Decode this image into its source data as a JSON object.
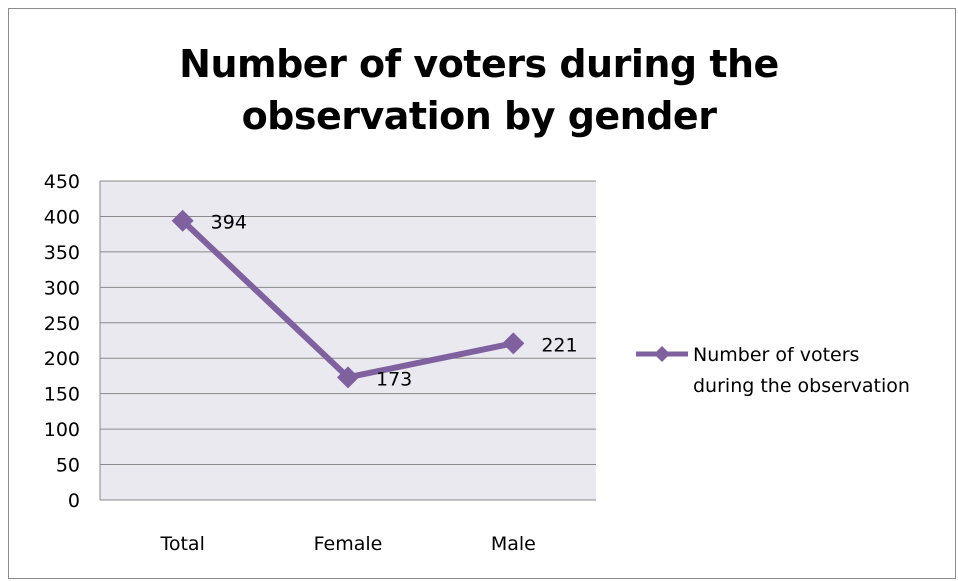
{
  "chart_data": {
    "type": "line",
    "title": "Number of voters during the observation by gender",
    "title_lines": [
      "Number of voters during the",
      "observation by gender"
    ],
    "categories": [
      "Total",
      "Female",
      "Male"
    ],
    "series": [
      {
        "name": "Number of voters during the observation",
        "name_lines": [
          "Number of voters",
          "during the observation"
        ],
        "values": [
          394,
          173,
          221
        ],
        "color": "#7f619f",
        "marker": "diamond"
      }
    ],
    "data_labels": [
      "394",
      "173",
      "221"
    ],
    "ylim": [
      0,
      450
    ],
    "y_ticks": [
      0,
      50,
      100,
      150,
      200,
      250,
      300,
      350,
      400,
      450
    ],
    "y_tick_labels": [
      "0",
      "50",
      "100",
      "150",
      "200",
      "250",
      "300",
      "350",
      "400",
      "450"
    ],
    "xlabel": "",
    "ylabel": "",
    "grid": true,
    "legend_position": "right",
    "plot_background": "#ebe9f0",
    "gridline_color": "#8a8a8a"
  }
}
